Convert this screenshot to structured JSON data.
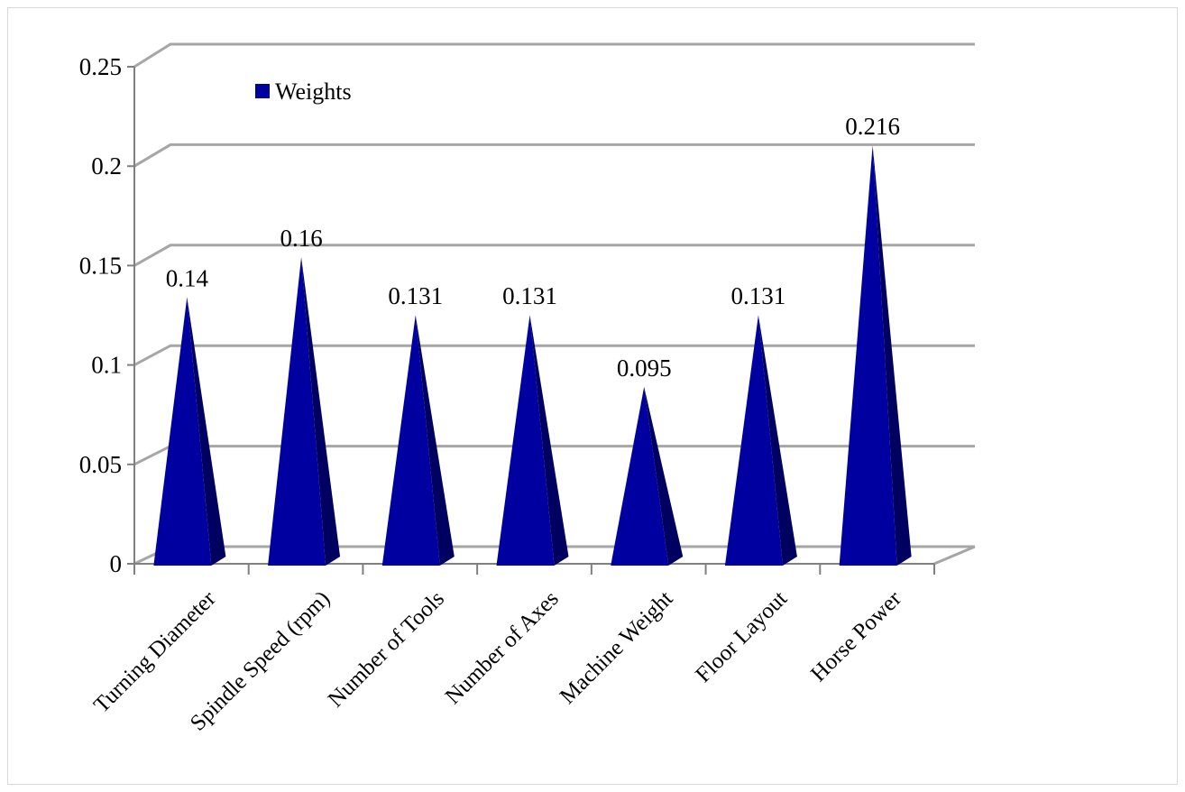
{
  "chart_data": {
    "type": "bar",
    "categories": [
      "Turning Diameter",
      "Spindle Speed (rpm)",
      "Number of Tools",
      "Number of Axes",
      "Machine Weight",
      "Floor Layout",
      "Horse Power"
    ],
    "series": [
      {
        "name": "Weights",
        "values": [
          0.14,
          0.16,
          0.131,
          0.131,
          0.095,
          0.131,
          0.216
        ],
        "data_labels": [
          "0.14",
          "0.16",
          "0.131",
          "0.131",
          "0.095",
          "0.131",
          "0.216"
        ]
      }
    ],
    "ylim": [
      0,
      0.25
    ],
    "yticks": [
      0,
      0.05,
      0.1,
      0.15,
      0.2,
      0.25
    ],
    "ytick_labels": [
      "0",
      "0.05",
      "0.1",
      "0.15",
      "0.2",
      "0.25"
    ],
    "grid": true,
    "legend_position": "top-left",
    "bar_shape": "3d-pyramid",
    "colors": {
      "front_face": "#0000a0",
      "side_face": "#000060",
      "gridline": "#a6a6a6",
      "axis": "#808080"
    }
  }
}
